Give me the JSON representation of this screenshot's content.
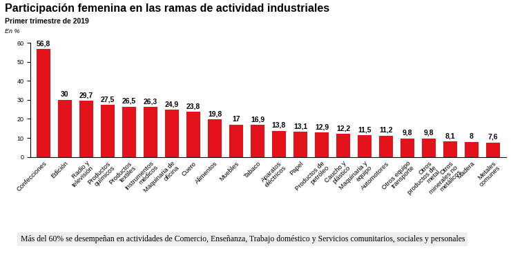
{
  "chart_data": {
    "type": "bar",
    "title": "Participación femenina en las ramas de actividad industriales",
    "subtitle": "Primer trimestre de 2019",
    "ylabel": "En %",
    "caption": "Más del 60% se desempeñan en actividades de Comercio, Enseñanza, Trabajo doméstico y Servicios comunitarios, sociales y personales",
    "categories": [
      "Confecciones",
      "Edición",
      "Radio y televisión",
      "Productos químicos",
      "Productos textiles",
      "Instrumentos médicos",
      "Maquinaria de oficina",
      "Cuero",
      "Alimentos",
      "Muebles",
      "Tabaco",
      "Aparatos eléctricos",
      "Papel",
      "Productos de petróleo",
      "Caucho y plástico",
      "Maquinaria y equipo",
      "Automotores",
      "Otros equipo transporte",
      "Otros productos de metal",
      "Otros minerales no metálicos",
      "Madera",
      "Metales comunes"
    ],
    "values": [
      56.8,
      30,
      29.7,
      27.5,
      26.5,
      26.3,
      24.9,
      23.8,
      19.8,
      17,
      16.9,
      13.8,
      13.1,
      12.9,
      12.2,
      11.5,
      11.2,
      9.8,
      9.8,
      8.1,
      8,
      7.6
    ],
    "value_labels": [
      "56,8",
      "30",
      "29,7",
      "27,5",
      "26,5",
      "26,3",
      "24,9",
      "23,8",
      "19,8",
      "17",
      "16,9",
      "13,8",
      "13,1",
      "12,9",
      "12,2",
      "11,5",
      "11,2",
      "9,8",
      "9,8",
      "8,1",
      "8",
      "7,6"
    ],
    "color": "#e3121b",
    "ylim": [
      0,
      60
    ],
    "yticks": [
      0,
      10,
      20,
      30,
      40,
      50,
      60
    ],
    "grid": false,
    "data_labels": true
  }
}
